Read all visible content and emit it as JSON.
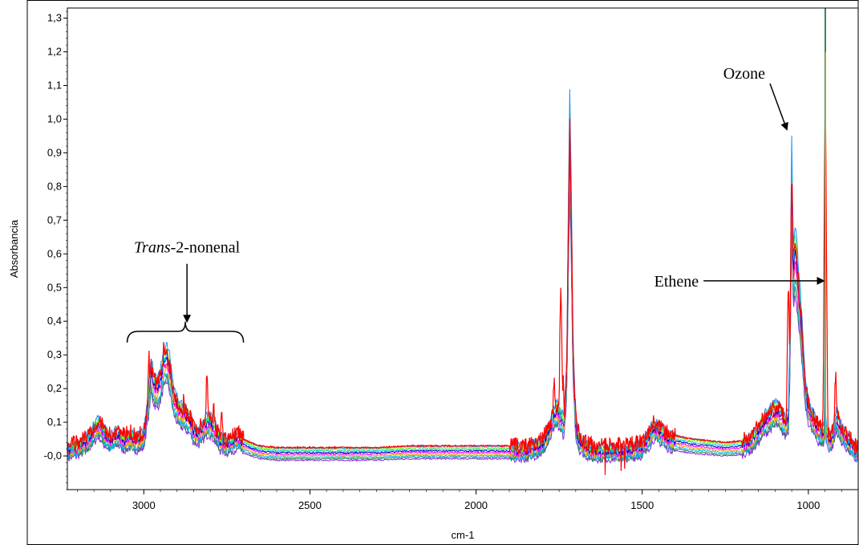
{
  "chart_data": {
    "type": "line",
    "title": "",
    "xlabel": "cm-1",
    "ylabel": "Absorbancia",
    "xlim": [
      3230,
      850
    ],
    "ylim": [
      -0.1,
      1.33
    ],
    "x_reversed": true,
    "x_ticks": [
      3000,
      2500,
      2000,
      1500,
      1000
    ],
    "y_ticks": [
      -0.0,
      0.1,
      0.2,
      0.3,
      0.4,
      0.5,
      0.6,
      0.7,
      0.8,
      0.9,
      1.0,
      1.1,
      1.2,
      1.3
    ],
    "y_tick_labels": [
      "-0,0",
      "0,1",
      "0,2",
      "0,3",
      "0,4",
      "0,5",
      "0,6",
      "0,7",
      "0,8",
      "0,9",
      "1,0",
      "1,1",
      "1,2",
      "1,3"
    ],
    "grid": false,
    "legend": "none",
    "series_colors": [
      "#8a2be2",
      "#2e8b57",
      "#00bfff",
      "#ffa500",
      "#ff00ff",
      "#0000cd",
      "#00ced1",
      "#7cfc00",
      "#1e90ff",
      "#ff0000"
    ],
    "reference_spectrum": [
      [
        3230,
        0.02
      ],
      [
        3200,
        0.03
      ],
      [
        3170,
        0.05
      ],
      [
        3150,
        0.08
      ],
      [
        3135,
        0.1
      ],
      [
        3120,
        0.07
      ],
      [
        3100,
        0.05
      ],
      [
        3080,
        0.07
      ],
      [
        3060,
        0.05
      ],
      [
        3040,
        0.06
      ],
      [
        3020,
        0.05
      ],
      [
        3000,
        0.06
      ],
      [
        2985,
        0.18
      ],
      [
        2978,
        0.26
      ],
      [
        2970,
        0.22
      ],
      [
        2960,
        0.2
      ],
      [
        2950,
        0.23
      ],
      [
        2940,
        0.28
      ],
      [
        2930,
        0.3
      ],
      [
        2920,
        0.25
      ],
      [
        2910,
        0.18
      ],
      [
        2895,
        0.14
      ],
      [
        2880,
        0.13
      ],
      [
        2870,
        0.12
      ],
      [
        2860,
        0.11
      ],
      [
        2850,
        0.08
      ],
      [
        2835,
        0.07
      ],
      [
        2820,
        0.09
      ],
      [
        2805,
        0.11
      ],
      [
        2790,
        0.09
      ],
      [
        2770,
        0.05
      ],
      [
        2750,
        0.04
      ],
      [
        2730,
        0.05
      ],
      [
        2715,
        0.06
      ],
      [
        2700,
        0.04
      ],
      [
        2680,
        0.03
      ],
      [
        2650,
        0.02
      ],
      [
        2600,
        0.015
      ],
      [
        2500,
        0.015
      ],
      [
        2400,
        0.015
      ],
      [
        2300,
        0.015
      ],
      [
        2200,
        0.02
      ],
      [
        2100,
        0.02
      ],
      [
        2000,
        0.02
      ],
      [
        1900,
        0.02
      ],
      [
        1850,
        0.02
      ],
      [
        1800,
        0.04
      ],
      [
        1780,
        0.08
      ],
      [
        1765,
        0.13
      ],
      [
        1755,
        0.14
      ],
      [
        1745,
        0.12
      ],
      [
        1735,
        0.1
      ],
      [
        1727,
        0.25
      ],
      [
        1722,
        0.7
      ],
      [
        1718,
        0.98
      ],
      [
        1714,
        0.75
      ],
      [
        1708,
        0.3
      ],
      [
        1700,
        0.1
      ],
      [
        1690,
        0.05
      ],
      [
        1670,
        0.03
      ],
      [
        1650,
        0.02
      ],
      [
        1600,
        0.02
      ],
      [
        1550,
        0.02
      ],
      [
        1500,
        0.03
      ],
      [
        1480,
        0.06
      ],
      [
        1465,
        0.09
      ],
      [
        1450,
        0.08
      ],
      [
        1430,
        0.06
      ],
      [
        1400,
        0.05
      ],
      [
        1350,
        0.04
      ],
      [
        1300,
        0.035
      ],
      [
        1250,
        0.03
      ],
      [
        1200,
        0.035
      ],
      [
        1170,
        0.05
      ],
      [
        1150,
        0.08
      ],
      [
        1130,
        0.11
      ],
      [
        1110,
        0.13
      ],
      [
        1095,
        0.14
      ],
      [
        1080,
        0.12
      ],
      [
        1070,
        0.1
      ],
      [
        1060,
        0.12
      ],
      [
        1055,
        0.35
      ],
      [
        1053,
        0.6
      ],
      [
        1050,
        0.85
      ],
      [
        1048,
        0.72
      ],
      [
        1045,
        0.55
      ],
      [
        1040,
        0.62
      ],
      [
        1035,
        0.58
      ],
      [
        1030,
        0.5
      ],
      [
        1025,
        0.45
      ],
      [
        1020,
        0.38
      ],
      [
        1015,
        0.3
      ],
      [
        1010,
        0.22
      ],
      [
        1005,
        0.18
      ],
      [
        1000,
        0.15
      ],
      [
        990,
        0.12
      ],
      [
        980,
        0.1
      ],
      [
        970,
        0.08
      ],
      [
        960,
        0.07
      ],
      [
        952,
        0.08
      ],
      [
        949,
        0.4
      ],
      [
        948,
        0.1
      ],
      [
        945,
        0.07
      ],
      [
        935,
        0.05
      ],
      [
        925,
        0.07
      ],
      [
        915,
        0.12
      ],
      [
        905,
        0.09
      ],
      [
        895,
        0.07
      ],
      [
        880,
        0.05
      ],
      [
        860,
        0.02
      ],
      [
        850,
        0.01
      ]
    ],
    "highlight_series": {
      "name": "",
      "color": "#ff0000",
      "peaks": [
        [
          2985,
          0.3
        ],
        [
          2940,
          0.33
        ],
        [
          2880,
          0.18
        ],
        [
          2810,
          0.24
        ],
        [
          2790,
          0.16
        ],
        [
          2765,
          0.12
        ],
        [
          1745,
          0.5
        ],
        [
          1738,
          0.22
        ],
        [
          1765,
          0.23
        ],
        [
          1718,
          0.96
        ],
        [
          1060,
          0.52
        ],
        [
          1045,
          0.62
        ],
        [
          1030,
          0.55
        ],
        [
          949,
          1.05
        ],
        [
          918,
          0.24
        ]
      ]
    },
    "annotations": [
      {
        "text_italic": "Trans",
        "text": "-2-nonenal",
        "x": 2870,
        "y": 0.58,
        "arrow_to": [
          2870,
          0.4
        ],
        "brace": [
          3050,
          2700,
          0.37
        ]
      },
      {
        "text": "Ozone",
        "x": 1130,
        "y": 1.12,
        "arrow_to": [
          1065,
          0.97
        ]
      },
      {
        "text": "Ethene",
        "x": 1330,
        "y": 0.52,
        "arrow_to": [
          950,
          0.52
        ]
      }
    ]
  }
}
